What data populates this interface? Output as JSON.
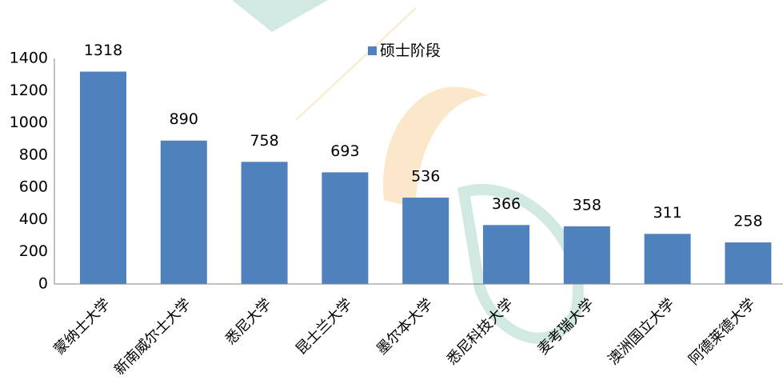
{
  "chart_data": {
    "type": "bar",
    "categories": [
      "蒙纳士大学",
      "新南威尔士大学",
      "悉尼大学",
      "昆士兰大学",
      "墨尔本大学",
      "悉尼科技大学",
      "麦考瑞大学",
      "澳洲国立大学",
      "阿德莱德大学"
    ],
    "series": [
      {
        "name": "硕士阶段",
        "color": "#4f81bd",
        "values": [
          1318,
          890,
          758,
          693,
          536,
          366,
          358,
          311,
          258
        ]
      }
    ],
    "ylim": [
      0,
      1400
    ],
    "yticks": [
      0,
      200,
      400,
      600,
      800,
      1000,
      1200,
      1400
    ],
    "grid": false
  }
}
